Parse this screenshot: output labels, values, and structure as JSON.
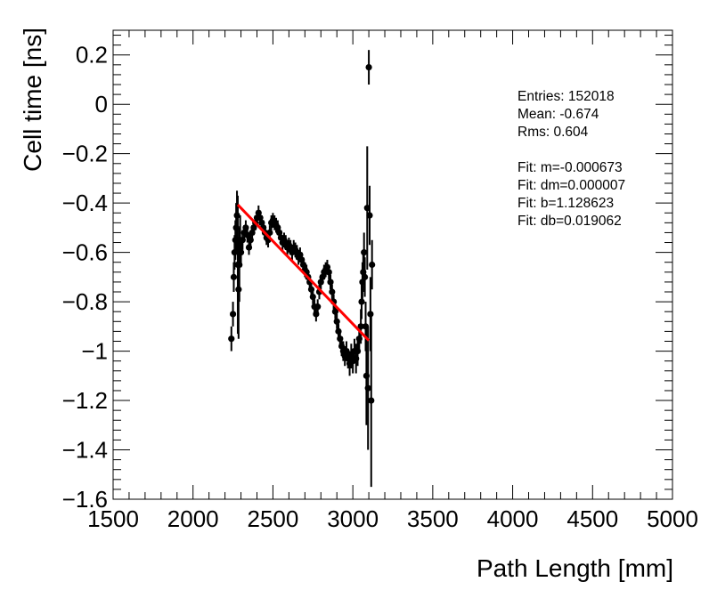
{
  "chart_data": {
    "type": "scatter",
    "title": "",
    "xlabel": "Path Length [mm]",
    "ylabel": "Cell time [ns]",
    "xlim": [
      1500,
      5000
    ],
    "ylim": [
      -1.6,
      0.3
    ],
    "grid": false,
    "x_ticks": [
      1500,
      2000,
      2500,
      3000,
      3500,
      4000,
      4500,
      5000
    ],
    "x_tick_labels": [
      "1500",
      "2000",
      "2500",
      "3000",
      "3500",
      "4000",
      "4500",
      "5000"
    ],
    "y_ticks": [
      -1.6,
      -1.4,
      -1.2,
      -1.0,
      -0.8,
      -0.6,
      -0.4,
      -0.2,
      0,
      0.2
    ],
    "y_tick_labels": [
      "−1.6",
      "−1.4",
      "−1.2",
      "−1",
      "−0.8",
      "−0.6",
      "−0.4",
      "−0.2",
      "0",
      "0.2"
    ],
    "series": [
      {
        "points": [
          [
            2240,
            -0.95,
            0.05
          ],
          [
            2250,
            -0.85,
            0.05
          ],
          [
            2255,
            -0.7,
            0.06
          ],
          [
            2260,
            -0.6,
            0.07
          ],
          [
            2265,
            -0.55,
            0.08
          ],
          [
            2270,
            -0.5,
            0.1
          ],
          [
            2275,
            -0.45,
            0.1
          ],
          [
            2280,
            -0.65,
            0.28
          ],
          [
            2285,
            -0.75,
            0.2
          ],
          [
            2290,
            -0.65,
            0.15
          ],
          [
            2295,
            -0.55,
            0.1
          ],
          [
            2300,
            -0.6,
            0.06
          ],
          [
            2310,
            -0.55,
            0.04
          ],
          [
            2320,
            -0.52,
            0.03
          ],
          [
            2330,
            -0.5,
            0.03
          ],
          [
            2340,
            -0.53,
            0.03
          ],
          [
            2350,
            -0.58,
            0.03
          ],
          [
            2360,
            -0.55,
            0.03
          ],
          [
            2370,
            -0.52,
            0.03
          ],
          [
            2380,
            -0.5,
            0.03
          ],
          [
            2390,
            -0.48,
            0.03
          ],
          [
            2400,
            -0.46,
            0.03
          ],
          [
            2410,
            -0.44,
            0.03
          ],
          [
            2420,
            -0.46,
            0.03
          ],
          [
            2430,
            -0.48,
            0.03
          ],
          [
            2440,
            -0.5,
            0.03
          ],
          [
            2450,
            -0.52,
            0.03
          ],
          [
            2460,
            -0.54,
            0.03
          ],
          [
            2470,
            -0.55,
            0.03
          ],
          [
            2480,
            -0.52,
            0.03
          ],
          [
            2490,
            -0.48,
            0.03
          ],
          [
            2500,
            -0.47,
            0.03
          ],
          [
            2510,
            -0.48,
            0.03
          ],
          [
            2520,
            -0.49,
            0.03
          ],
          [
            2530,
            -0.5,
            0.03
          ],
          [
            2540,
            -0.52,
            0.03
          ],
          [
            2550,
            -0.54,
            0.03
          ],
          [
            2560,
            -0.56,
            0.03
          ],
          [
            2570,
            -0.55,
            0.03
          ],
          [
            2580,
            -0.56,
            0.03
          ],
          [
            2590,
            -0.58,
            0.03
          ],
          [
            2600,
            -0.57,
            0.03
          ],
          [
            2610,
            -0.58,
            0.03
          ],
          [
            2620,
            -0.6,
            0.03
          ],
          [
            2630,
            -0.58,
            0.03
          ],
          [
            2640,
            -0.59,
            0.03
          ],
          [
            2650,
            -0.6,
            0.03
          ],
          [
            2660,
            -0.62,
            0.03
          ],
          [
            2670,
            -0.61,
            0.03
          ],
          [
            2680,
            -0.63,
            0.03
          ],
          [
            2690,
            -0.65,
            0.03
          ],
          [
            2700,
            -0.67,
            0.03
          ],
          [
            2710,
            -0.68,
            0.03
          ],
          [
            2720,
            -0.7,
            0.03
          ],
          [
            2730,
            -0.72,
            0.03
          ],
          [
            2740,
            -0.75,
            0.03
          ],
          [
            2750,
            -0.78,
            0.03
          ],
          [
            2760,
            -0.82,
            0.03
          ],
          [
            2770,
            -0.85,
            0.03
          ],
          [
            2780,
            -0.82,
            0.03
          ],
          [
            2790,
            -0.76,
            0.03
          ],
          [
            2800,
            -0.72,
            0.03
          ],
          [
            2810,
            -0.7,
            0.03
          ],
          [
            2820,
            -0.68,
            0.03
          ],
          [
            2830,
            -0.67,
            0.03
          ],
          [
            2840,
            -0.66,
            0.03
          ],
          [
            2850,
            -0.68,
            0.03
          ],
          [
            2860,
            -0.72,
            0.03
          ],
          [
            2870,
            -0.76,
            0.03
          ],
          [
            2880,
            -0.8,
            0.03
          ],
          [
            2890,
            -0.84,
            0.03
          ],
          [
            2900,
            -0.88,
            0.03
          ],
          [
            2910,
            -0.92,
            0.03
          ],
          [
            2920,
            -0.95,
            0.03
          ],
          [
            2930,
            -0.98,
            0.04
          ],
          [
            2940,
            -1.0,
            0.04
          ],
          [
            2950,
            -1.02,
            0.04
          ],
          [
            2960,
            -1.0,
            0.04
          ],
          [
            2970,
            -1.03,
            0.04
          ],
          [
            2980,
            -1.05,
            0.05
          ],
          [
            2990,
            -1.02,
            0.05
          ],
          [
            3000,
            -1.04,
            0.05
          ],
          [
            3010,
            -1.0,
            0.05
          ],
          [
            3020,
            -1.03,
            0.06
          ],
          [
            3030,
            -1.0,
            0.06
          ],
          [
            3040,
            -0.95,
            0.06
          ],
          [
            3050,
            -0.9,
            0.07
          ],
          [
            3055,
            -0.8,
            0.07
          ],
          [
            3060,
            -0.72,
            0.08
          ],
          [
            3065,
            -0.68,
            0.08
          ],
          [
            3070,
            -0.6,
            0.08
          ],
          [
            3075,
            -0.7,
            0.08
          ],
          [
            3080,
            -0.9,
            0.1
          ],
          [
            3085,
            -1.1,
            0.2
          ],
          [
            3090,
            -0.42,
            0.25
          ],
          [
            3095,
            -1.15,
            0.25
          ],
          [
            3100,
            0.15,
            0.07
          ],
          [
            3105,
            -0.45,
            0.12
          ],
          [
            3110,
            -0.85,
            0.15
          ],
          [
            3115,
            -1.2,
            0.35
          ],
          [
            3120,
            -0.65,
            0.1
          ]
        ]
      }
    ],
    "fit_line": {
      "x": [
        2280,
        3100
      ],
      "y": [
        -0.407,
        -0.957
      ],
      "color": "#ff0000"
    },
    "marker_color": "#000000",
    "stats_box": {
      "position": "top-right",
      "lines": [
        "Entries: 152018",
        "Mean: -0.674",
        "Rms: 0.604",
        "",
        "Fit: m=-0.000673",
        "Fit: dm=0.000007",
        "Fit: b=1.128623",
        "Fit: db=0.019062"
      ]
    }
  }
}
